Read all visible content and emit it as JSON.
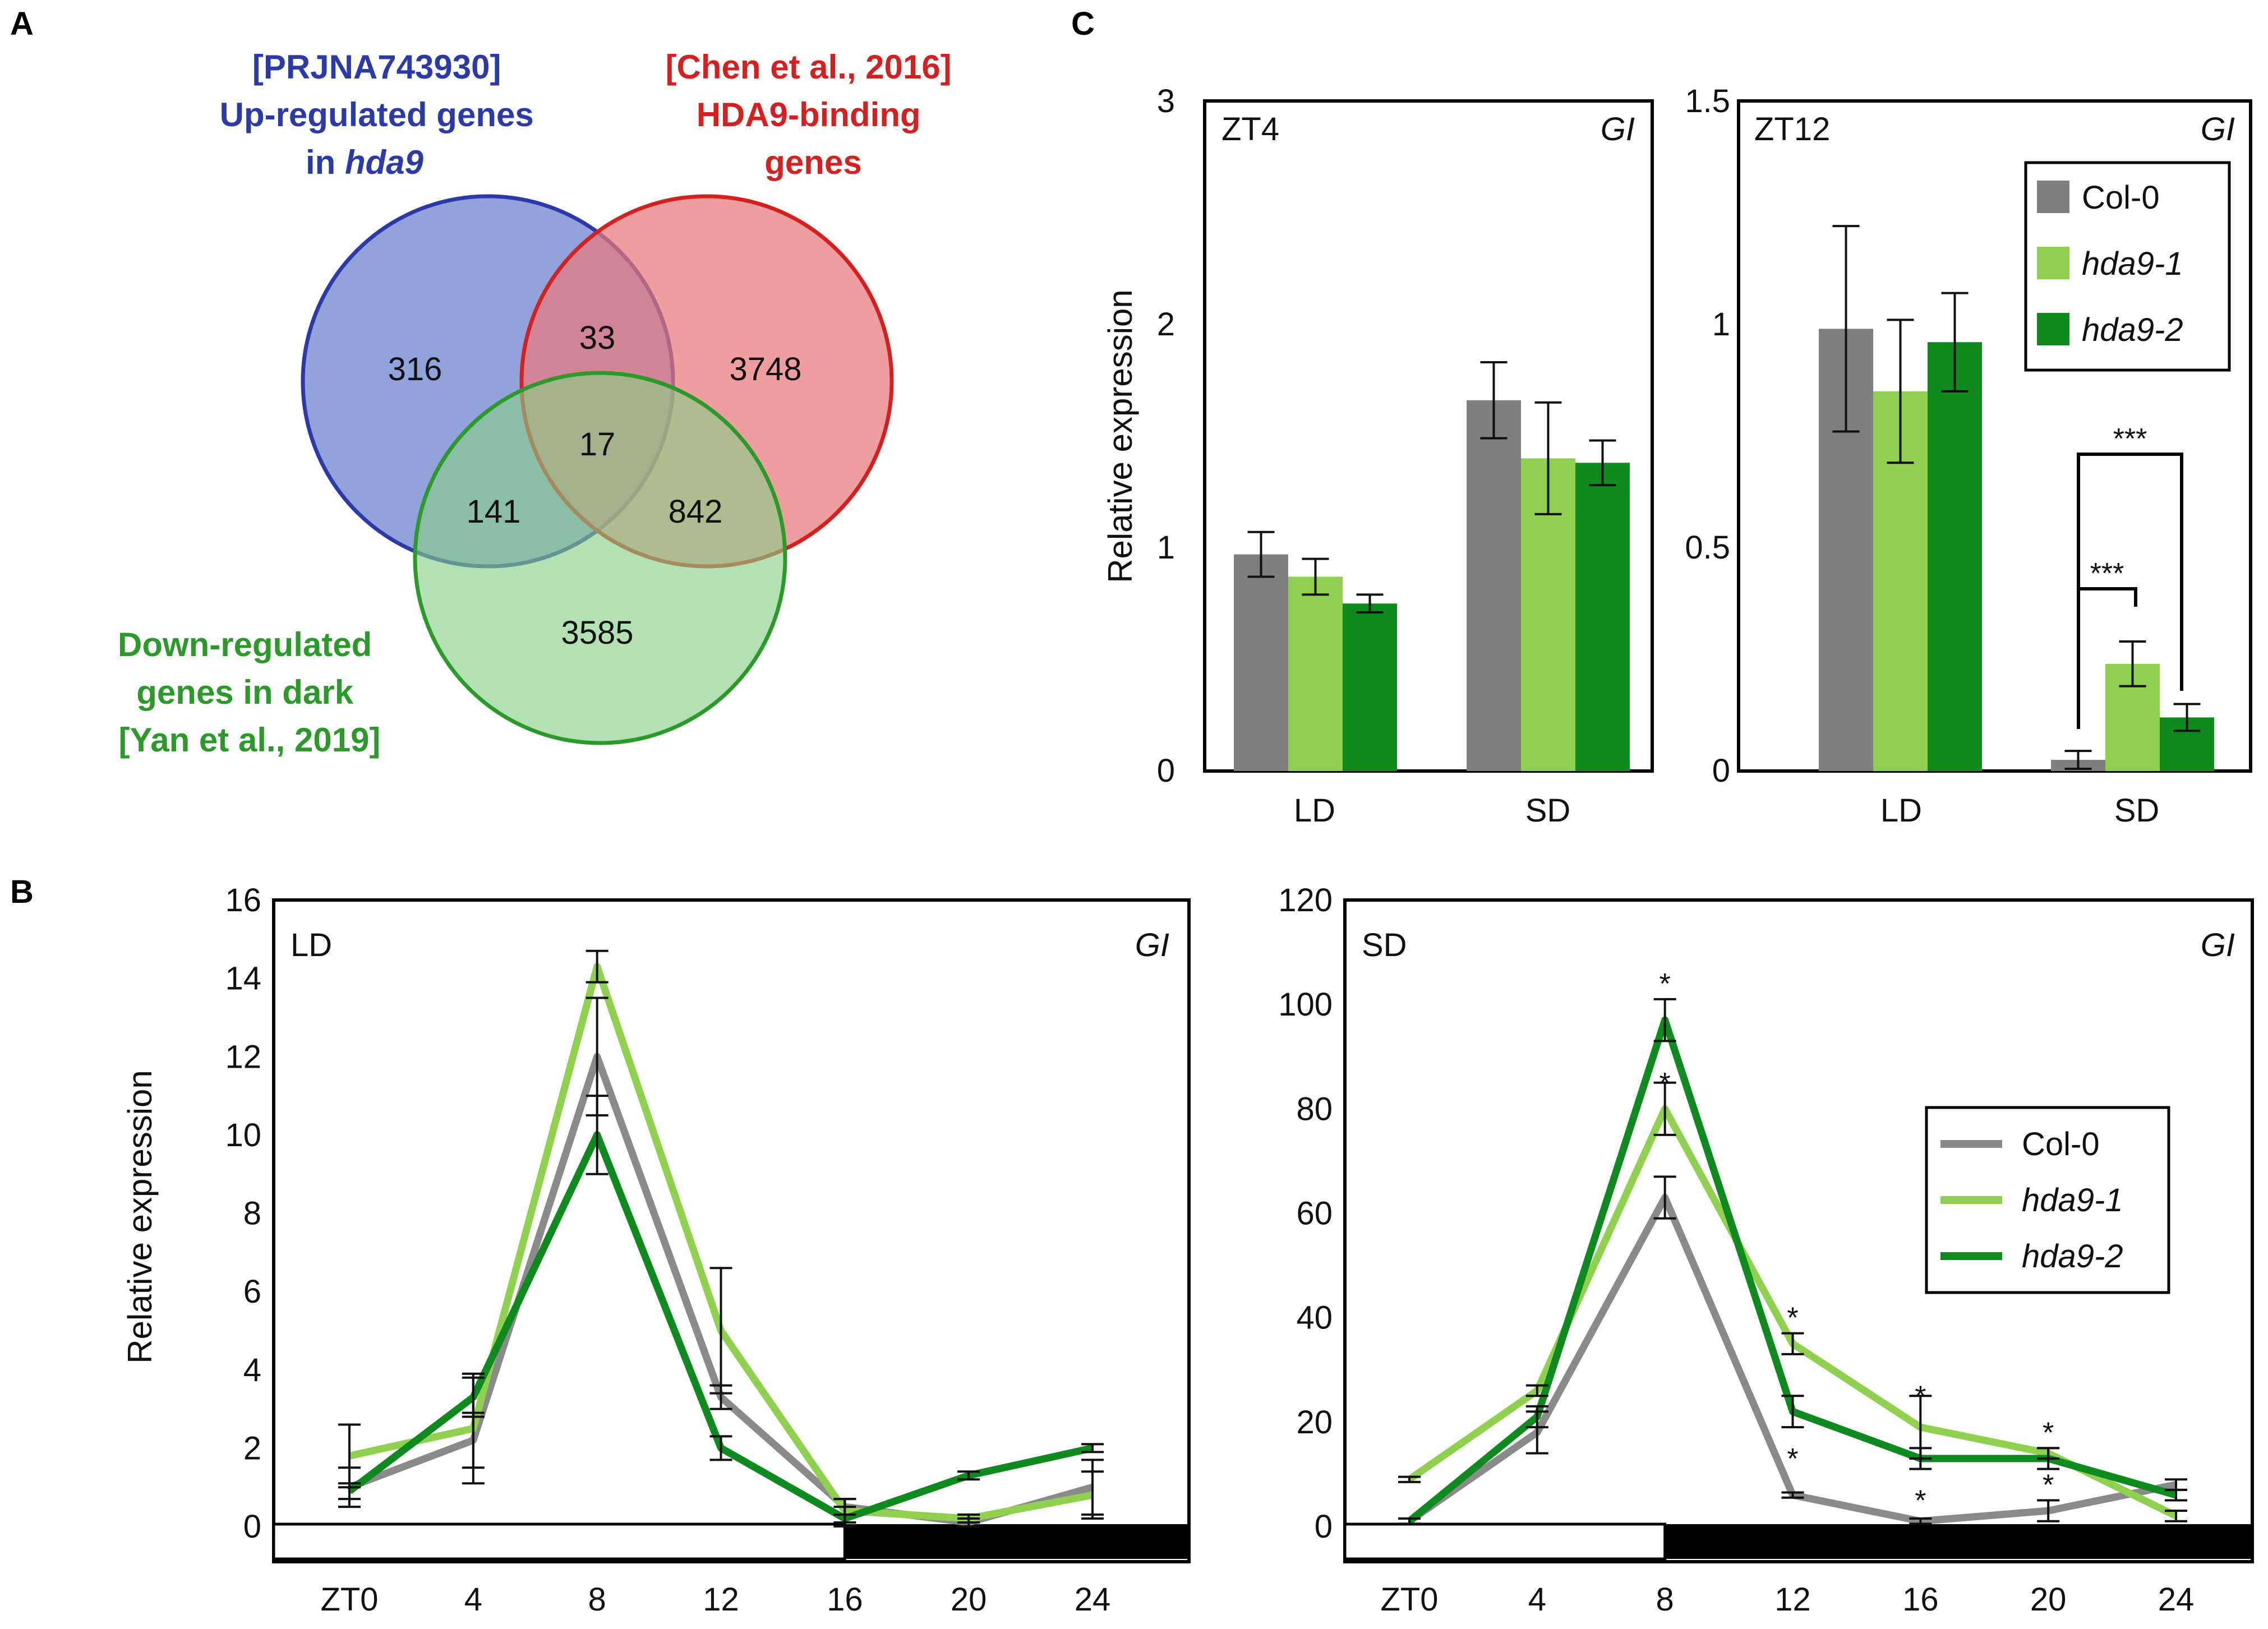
{
  "panels": {
    "A": "A",
    "B": "B",
    "C": "C"
  },
  "venn": {
    "blue": {
      "lines": [
        "[PRJNA743930]",
        "Up-regulated genes",
        "in "
      ],
      "italic": "hda9",
      "color": "#2b3aa8",
      "fill": "#7f92d4"
    },
    "red": {
      "lines": [
        "[Chen et al., 2016]",
        "HDA9-binding",
        "genes"
      ],
      "color": "#d42020",
      "fill": "#e8797a"
    },
    "green": {
      "lines": [
        "Down-regulated",
        "genes in dark",
        "[Yan et al., 2019]"
      ],
      "color": "#2b9a2b",
      "fill": "#86cf86"
    },
    "counts": {
      "blue_only": "316",
      "blue_red": "33",
      "red_only": "3748",
      "all": "17",
      "blue_green": "141",
      "red_green": "842",
      "green_only": "3585"
    }
  },
  "chart_data": [
    {
      "id": "C-left",
      "type": "bar",
      "corner_label": "ZT4",
      "gene": "GI",
      "ylabel": "Relative expression",
      "ylim": [
        0,
        3
      ],
      "yticks": [
        "0",
        "1",
        "2",
        "3"
      ],
      "categories": [
        "LD",
        "SD"
      ],
      "series": [
        {
          "name": "Col-0",
          "color": "#7f7f7f",
          "values": [
            0.97,
            1.66
          ],
          "errors": [
            0.1,
            0.17
          ]
        },
        {
          "name": "hda9-1",
          "color": "#8fd14f",
          "values": [
            0.87,
            1.4
          ],
          "errors": [
            0.08,
            0.25
          ]
        },
        {
          "name": "hda9-2",
          "color": "#0f8a1e",
          "values": [
            0.75,
            1.38
          ],
          "errors": [
            0.04,
            0.1
          ]
        }
      ]
    },
    {
      "id": "C-right",
      "type": "bar",
      "corner_label": "ZT12",
      "gene": "GI",
      "ylim": [
        0,
        1.5
      ],
      "yticks": [
        "0",
        "0.5",
        "1",
        "1.5"
      ],
      "categories": [
        "LD",
        "SD"
      ],
      "legend": [
        "Col-0",
        "hda9-1",
        "hda9-2"
      ],
      "significance": [
        "***",
        "***"
      ],
      "series": [
        {
          "name": "Col-0",
          "color": "#7f7f7f",
          "values": [
            0.99,
            0.025
          ],
          "errors": [
            0.23,
            0.02
          ]
        },
        {
          "name": "hda9-1",
          "color": "#8fd14f",
          "values": [
            0.85,
            0.24
          ],
          "errors": [
            0.16,
            0.05
          ]
        },
        {
          "name": "hda9-2",
          "color": "#0f8a1e",
          "values": [
            0.96,
            0.12
          ],
          "errors": [
            0.11,
            0.03
          ]
        }
      ]
    },
    {
      "id": "B-left",
      "type": "line",
      "corner_label": "LD",
      "gene": "GI",
      "ylabel": "Relative expression",
      "ylim": [
        0,
        16
      ],
      "yticks": [
        "0",
        "2",
        "4",
        "6",
        "8",
        "10",
        "12",
        "14",
        "16"
      ],
      "x": [
        0,
        4,
        8,
        12,
        16,
        20,
        24
      ],
      "xticks": [
        "ZT0",
        "4",
        "8",
        "12",
        "16",
        "20",
        "24"
      ],
      "light_period_end": 16,
      "series": [
        {
          "name": "Col-0",
          "color": "#8a8a8a",
          "values": [
            1.0,
            2.2,
            12.0,
            3.3,
            0.5,
            0.1,
            1.0
          ],
          "errors": [
            0.5,
            0.7,
            1.5,
            0.3,
            0.2,
            0.1,
            0.7
          ]
        },
        {
          "name": "hda9-1",
          "color": "#8fd14f",
          "values": [
            1.8,
            2.5,
            14.3,
            5.0,
            0.4,
            0.2,
            0.8
          ],
          "errors": [
            0.8,
            1.4,
            0.4,
            1.6,
            0.3,
            0.1,
            0.6
          ]
        },
        {
          "name": "hda9-2",
          "color": "#0f8a1e",
          "values": [
            0.9,
            3.3,
            10.0,
            2.0,
            0.2,
            1.3,
            2.0
          ],
          "errors": [
            0.2,
            0.5,
            1.0,
            0.3,
            0.3,
            0.1,
            0.1
          ]
        }
      ]
    },
    {
      "id": "B-right",
      "type": "line",
      "corner_label": "SD",
      "gene": "GI",
      "ylim": [
        0,
        120
      ],
      "yticks": [
        "0",
        "20",
        "40",
        "60",
        "80",
        "100",
        "120"
      ],
      "x": [
        0,
        4,
        8,
        12,
        16,
        20,
        24
      ],
      "xticks": [
        "ZT0",
        "4",
        "8",
        "12",
        "16",
        "20",
        "24"
      ],
      "light_period_end": 8,
      "legend": [
        "Col-0",
        "hda9-1",
        "hda9-2"
      ],
      "significance": "*",
      "series": [
        {
          "name": "Col-0",
          "color": "#8a8a8a",
          "values": [
            1,
            18,
            63,
            6,
            1,
            3,
            8
          ],
          "errors": [
            0.5,
            4,
            4,
            0.5,
            0.5,
            2,
            1
          ]
        },
        {
          "name": "hda9-1",
          "color": "#8fd14f",
          "values": [
            9,
            26,
            80,
            35,
            19,
            14,
            2
          ],
          "errors": [
            0.5,
            1,
            5,
            2,
            6,
            1,
            1
          ]
        },
        {
          "name": "hda9-2",
          "color": "#0f8a1e",
          "values": [
            1,
            21,
            97,
            22,
            13,
            13,
            6
          ],
          "errors": [
            0.5,
            2,
            4,
            3,
            2,
            2,
            1
          ]
        }
      ]
    }
  ]
}
